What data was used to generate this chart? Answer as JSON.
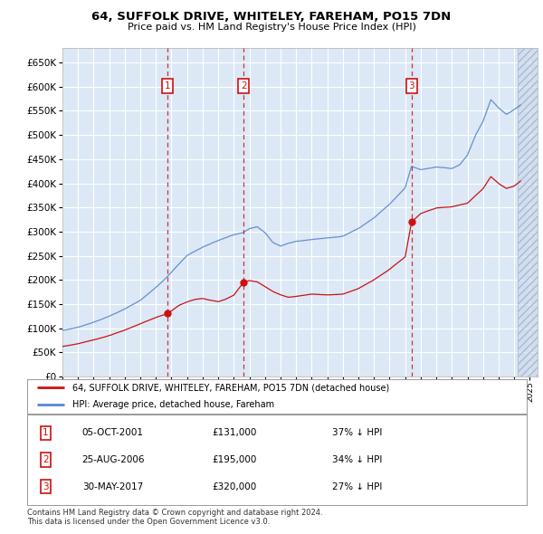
{
  "title": "64, SUFFOLK DRIVE, WHITELEY, FAREHAM, PO15 7DN",
  "subtitle": "Price paid vs. HM Land Registry's House Price Index (HPI)",
  "background_color": "#ffffff",
  "plot_bg_color": "#dce8f5",
  "grid_color": "#ffffff",
  "hpi_line_color": "#5588cc",
  "price_line_color": "#cc1111",
  "purchases": [
    {
      "date": 2001.75,
      "price": 131000,
      "label": "1"
    },
    {
      "date": 2006.63,
      "price": 195000,
      "label": "2"
    },
    {
      "date": 2017.41,
      "price": 320000,
      "label": "3"
    }
  ],
  "vline_color": "#cc3333",
  "box_color": "#cc1111",
  "legend_entries": [
    "64, SUFFOLK DRIVE, WHITELEY, FAREHAM, PO15 7DN (detached house)",
    "HPI: Average price, detached house, Fareham"
  ],
  "table_data": [
    [
      "1",
      "05-OCT-2001",
      "£131,000",
      "37% ↓ HPI"
    ],
    [
      "2",
      "25-AUG-2006",
      "£195,000",
      "34% ↓ HPI"
    ],
    [
      "3",
      "30-MAY-2017",
      "£320,000",
      "27% ↓ HPI"
    ]
  ],
  "footnote": "Contains HM Land Registry data © Crown copyright and database right 2024.\nThis data is licensed under the Open Government Licence v3.0.",
  "ylim": [
    0,
    680000
  ],
  "yticks": [
    0,
    50000,
    100000,
    150000,
    200000,
    250000,
    300000,
    350000,
    400000,
    450000,
    500000,
    550000,
    600000,
    650000
  ],
  "xlim_start": 1995.0,
  "xlim_end": 2025.5,
  "hatch_start": 2024.25
}
